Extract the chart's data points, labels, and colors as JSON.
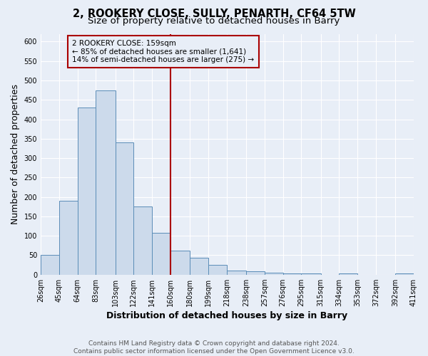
{
  "title_line1": "2, ROOKERY CLOSE, SULLY, PENARTH, CF64 5TW",
  "title_line2": "Size of property relative to detached houses in Barry",
  "xlabel": "Distribution of detached houses by size in Barry",
  "ylabel": "Number of detached properties",
  "bin_labels": [
    "26sqm",
    "45sqm",
    "64sqm",
    "83sqm",
    "103sqm",
    "122sqm",
    "141sqm",
    "160sqm",
    "180sqm",
    "199sqm",
    "218sqm",
    "238sqm",
    "257sqm",
    "276sqm",
    "295sqm",
    "315sqm",
    "334sqm",
    "353sqm",
    "372sqm",
    "392sqm",
    "411sqm"
  ],
  "bin_edges": [
    26,
    45,
    64,
    83,
    103,
    122,
    141,
    160,
    180,
    199,
    218,
    238,
    257,
    276,
    295,
    315,
    334,
    353,
    372,
    392,
    411
  ],
  "bar_heights": [
    50,
    190,
    430,
    475,
    340,
    175,
    108,
    62,
    44,
    25,
    11,
    8,
    5,
    3,
    3,
    0,
    3,
    0,
    0,
    3
  ],
  "bar_facecolor": "#ccdaeb",
  "bar_edgecolor": "#5b8db8",
  "vline_x": 160,
  "vline_color": "#aa0000",
  "annotation_title": "2 ROOKERY CLOSE: 159sqm",
  "annotation_line1": "← 85% of detached houses are smaller (1,641)",
  "annotation_line2": "14% of semi-detached houses are larger (275) →",
  "annotation_box_edgecolor": "#aa0000",
  "ylim": [
    0,
    620
  ],
  "yticks": [
    0,
    50,
    100,
    150,
    200,
    250,
    300,
    350,
    400,
    450,
    500,
    550,
    600
  ],
  "footer_line1": "Contains HM Land Registry data © Crown copyright and database right 2024.",
  "footer_line2": "Contains public sector information licensed under the Open Government Licence v3.0.",
  "fig_facecolor": "#e8eef7",
  "plot_facecolor": "#e8eef7",
  "grid_color": "#ffffff",
  "title_fontsize": 10.5,
  "subtitle_fontsize": 9.5,
  "axis_label_fontsize": 9,
  "tick_fontsize": 7,
  "annotation_fontsize": 7.5,
  "footer_fontsize": 6.5
}
